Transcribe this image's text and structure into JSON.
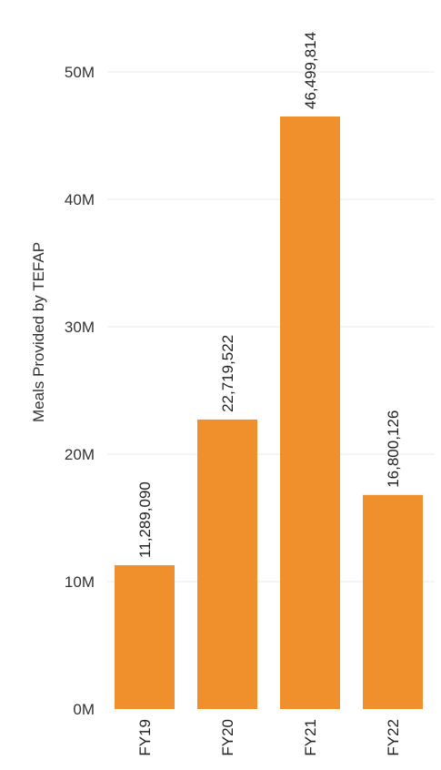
{
  "chart_data": {
    "type": "bar",
    "categories": [
      "FY19",
      "FY20",
      "FY21",
      "FY22"
    ],
    "values": [
      11289090,
      22719522,
      46499814,
      16800126
    ],
    "data_labels": [
      "11,289,090",
      "22,719,522",
      "46,499,814",
      "16,800,126"
    ],
    "title": "",
    "xlabel": "",
    "ylabel": "Meals Provided by TEFAP",
    "ylim": [
      0,
      55000000
    ],
    "yticks": [
      0,
      10000000,
      20000000,
      30000000,
      40000000,
      50000000
    ],
    "ytick_labels": [
      "0M",
      "10M",
      "20M",
      "30M",
      "40M",
      "50M"
    ],
    "grid": true,
    "legend": "none",
    "bar_color": "#f0902c"
  }
}
